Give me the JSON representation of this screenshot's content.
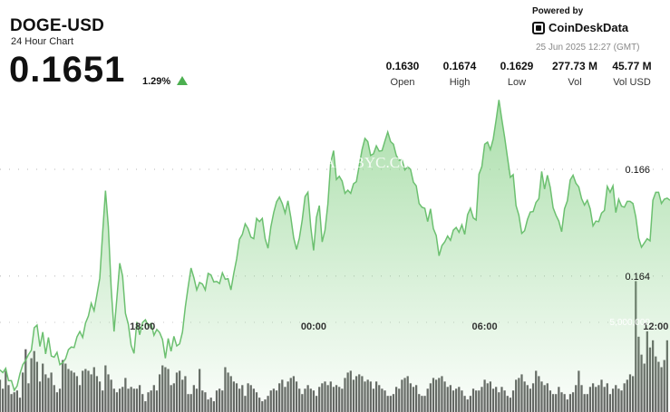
{
  "header": {
    "title": "DOGE-USD",
    "subtitle": "24 Hour Chart",
    "price": "0.1651",
    "change": "1.29%",
    "powered_by": "Powered by",
    "brand": "CoinDeskData",
    "timestamp": "25 Jun 2025 12:27 (GMT)"
  },
  "stats": [
    {
      "value": "0.1630",
      "label": "Open"
    },
    {
      "value": "0.1674",
      "label": "High"
    },
    {
      "value": "0.1629",
      "label": "Low"
    },
    {
      "value": "277.73 M",
      "label": "Vol"
    },
    {
      "value": "45.77 M",
      "label": "Vol USD"
    }
  ],
  "colors": {
    "line": "#6cc070",
    "area_top": "#8fd48f",
    "volume": "#555555",
    "up": "#4caf50"
  },
  "watermark": "ALLBYC.COM",
  "chart_data": {
    "type": "line",
    "title": "DOGE-USD",
    "x_tick_labels": [
      "18:00",
      "00:00",
      "06:00",
      "12:00"
    ],
    "x_tick_index": [
      50,
      110,
      170,
      230
    ],
    "y_tick_labels": [
      "0.166",
      "0.164"
    ],
    "y_ticks": [
      0.166,
      0.164
    ],
    "y_range": [
      0.16135,
      0.16785
    ],
    "volume_tick_label": "5,000,000",
    "volume_tick": 5000000,
    "volume_range": [
      0,
      10000000
    ],
    "grid": "dotted horizontal",
    "price": [
      0.16224,
      0.16219,
      0.16227,
      0.16204,
      0.16204,
      0.16186,
      0.16194,
      0.16217,
      0.16234,
      0.16242,
      0.16253,
      0.16261,
      0.16303,
      0.16308,
      0.16268,
      0.16295,
      0.16254,
      0.16285,
      0.1625,
      0.16248,
      0.16257,
      0.16234,
      0.16238,
      0.16245,
      0.16262,
      0.16267,
      0.16266,
      0.16286,
      0.16296,
      0.16285,
      0.16312,
      0.16325,
      0.16349,
      0.16335,
      0.16365,
      0.16396,
      0.16481,
      0.1656,
      0.16493,
      0.16377,
      0.16296,
      0.16359,
      0.16424,
      0.164,
      0.1633,
      0.1631,
      0.1627,
      0.16255,
      0.16314,
      0.1629,
      0.16313,
      0.16318,
      0.16307,
      0.16311,
      0.16289,
      0.163,
      0.16294,
      0.16281,
      0.16246,
      0.16283,
      0.16259,
      0.16287,
      0.16269,
      0.16273,
      0.16295,
      0.16342,
      0.1638,
      0.16415,
      0.16397,
      0.16374,
      0.16388,
      0.16385,
      0.16374,
      0.16405,
      0.16402,
      0.16389,
      0.1639,
      0.16386,
      0.16406,
      0.16394,
      0.16395,
      0.16374,
      0.16405,
      0.16432,
      0.16469,
      0.16478,
      0.16498,
      0.16489,
      0.16473,
      0.1647,
      0.16508,
      0.16502,
      0.16508,
      0.1647,
      0.16452,
      0.16492,
      0.16519,
      0.16539,
      0.16548,
      0.16536,
      0.16518,
      0.16541,
      0.1651,
      0.16472,
      0.1645,
      0.16471,
      0.16505,
      0.16549,
      0.16557,
      0.16492,
      0.16448,
      0.1651,
      0.16532,
      0.16464,
      0.16486,
      0.16535,
      0.16613,
      0.16635,
      0.16581,
      0.16587,
      0.16578,
      0.16555,
      0.16561,
      0.16555,
      0.16573,
      0.16577,
      0.16607,
      0.16637,
      0.16658,
      0.16652,
      0.16626,
      0.16629,
      0.16644,
      0.16634,
      0.16635,
      0.16653,
      0.1667,
      0.16652,
      0.16647,
      0.16626,
      0.16617,
      0.16618,
      0.16599,
      0.16605,
      0.166,
      0.16576,
      0.16569,
      0.16536,
      0.16529,
      0.16527,
      0.16502,
      0.16526,
      0.16489,
      0.16476,
      0.16438,
      0.16457,
      0.16464,
      0.16475,
      0.16467,
      0.16486,
      0.16491,
      0.16482,
      0.16496,
      0.16478,
      0.16515,
      0.16527,
      0.16509,
      0.16505,
      0.16591,
      0.16605,
      0.16647,
      0.16651,
      0.16637,
      0.16657,
      0.16692,
      0.1673,
      0.16694,
      0.1666,
      0.16622,
      0.16585,
      0.1659,
      0.16532,
      0.16514,
      0.1648,
      0.16485,
      0.16506,
      0.1652,
      0.16521,
      0.16538,
      0.16545,
      0.16596,
      0.16563,
      0.16589,
      0.16566,
      0.16528,
      0.16514,
      0.16503,
      0.16483,
      0.16526,
      0.16541,
      0.1658,
      0.16589,
      0.16574,
      0.16567,
      0.16545,
      0.16533,
      0.16542,
      0.16526,
      0.16494,
      0.16503,
      0.16502,
      0.16518,
      0.16523,
      0.16568,
      0.16557,
      0.16569,
      0.16519,
      0.16544,
      0.16531,
      0.16529,
      0.1654,
      0.1654,
      0.16536,
      0.16511,
      0.16471,
      0.16454,
      0.16462,
      0.1647,
      0.16466,
      0.16542,
      0.16557,
      0.16557,
      0.16536,
      0.16544,
      0.16546,
      0.16542
    ],
    "volume": [
      1800000,
      1300000,
      2300000,
      1500000,
      1000000,
      1100000,
      1200000,
      800000,
      2200000,
      3500000,
      1600000,
      3000000,
      3400000,
      2800000,
      1700000,
      2700000,
      2100000,
      1900000,
      2200000,
      1500000,
      1100000,
      1300000,
      2900000,
      2700000,
      2400000,
      2300000,
      2200000,
      2000000,
      1500000,
      2300000,
      2400000,
      2300000,
      2100000,
      2500000,
      2000000,
      1700000,
      1200000,
      2600000,
      2100000,
      1800000,
      1300000,
      1100000,
      1300000,
      1400000,
      1900000,
      1300000,
      1400000,
      1300000,
      1300000,
      1500000,
      1000000,
      600000,
      1100000,
      1200000,
      1500000,
      1200000,
      2100000,
      2600000,
      2500000,
      2400000,
      1500000,
      1600000,
      2200000,
      2300000,
      1800000,
      2000000,
      1000000,
      1000000,
      1500000,
      1300000,
      2400000,
      1200000,
      1100000,
      700000,
      800000,
      600000,
      1200000,
      1300000,
      1200000,
      2500000,
      2200000,
      2000000,
      1700000,
      1600000,
      1300000,
      1500000,
      900000,
      1600000,
      1500000,
      1300000,
      1100000,
      800000,
      600000,
      700000,
      900000,
      1200000,
      1300000,
      1200000,
      1600000,
      1800000,
      1400000,
      1700000,
      1900000,
      2000000,
      1700000,
      1300000,
      1000000,
      1300000,
      1500000,
      1300000,
      1200000,
      900000,
      1400000,
      1600000,
      1700000,
      1500000,
      1700000,
      1400000,
      1500000,
      1400000,
      1300000,
      1900000,
      2200000,
      2300000,
      1800000,
      2000000,
      2100000,
      2000000,
      1700000,
      1800000,
      1700000,
      1300000,
      1700000,
      1500000,
      1300000,
      1200000,
      900000,
      900000,
      1000000,
      1400000,
      1300000,
      1800000,
      1900000,
      2000000,
      1600000,
      1400000,
      1500000,
      1000000,
      900000,
      900000,
      1300000,
      1600000,
      1900000,
      1800000,
      1900000,
      2000000,
      1700000,
      1400000,
      1500000,
      1200000,
      1300000,
      1400000,
      1200000,
      900000,
      700000,
      900000,
      1300000,
      1200000,
      1200000,
      1400000,
      1800000,
      1600000,
      1700000,
      1300000,
      1400000,
      1100000,
      1400000,
      1200000,
      900000,
      800000,
      1200000,
      1800000,
      1900000,
      2100000,
      1700000,
      1500000,
      1300000,
      1600000,
      2300000,
      2000000,
      1700000,
      1500000,
      1600000,
      1200000,
      1000000,
      1000000,
      1400000,
      1100000,
      1000000,
      700000,
      1000000,
      1100000,
      1500000,
      2300000,
      1500000,
      1000000,
      1000000,
      1400000,
      1600000,
      1400000,
      1500000,
      1800000,
      1400000,
      1600000,
      1000000,
      1300000,
      1500000,
      1300000,
      1200000,
      1600000,
      1800000,
      2100000,
      2000000,
      7300000,
      4200000,
      3200000,
      2700000,
      4500000,
      3600000,
      4000000,
      3100000,
      2800000,
      2500000,
      2900000,
      4000000
    ]
  }
}
